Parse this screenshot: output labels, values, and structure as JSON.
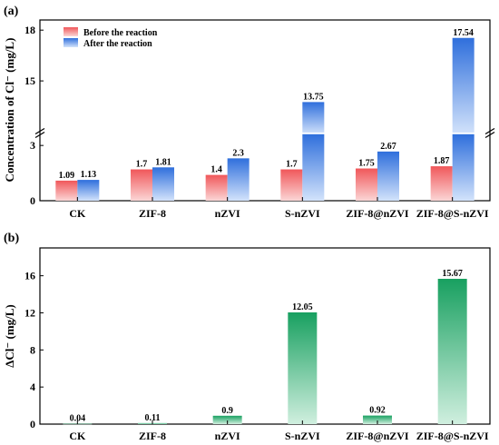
{
  "chart_data": [
    {
      "panel": "(a)",
      "type": "bar",
      "ylabel": "Concentration of Cl⁻ (mg/L)",
      "categories": [
        "CK",
        "ZIF-8",
        "nZVI",
        "S-nZVI",
        "ZIF-8@nZVI",
        "ZIF-8@S-nZVI"
      ],
      "series": [
        {
          "name": "Before the reaction",
          "values": [
            1.09,
            1.7,
            1.4,
            1.7,
            1.75,
            1.87
          ],
          "labels": [
            "1.09",
            "1.7",
            "1.4",
            "1.7",
            "1.75",
            "1.87"
          ],
          "color": "#f0575a"
        },
        {
          "name": "After the reaction",
          "values": [
            1.13,
            1.81,
            2.3,
            13.75,
            2.67,
            17.54
          ],
          "labels": [
            "1.13",
            "1.81",
            "2.3",
            "13.75",
            "2.67",
            "17.54"
          ],
          "color": "#2f6fdc"
        }
      ],
      "yticks": [
        "0",
        "3",
        "15",
        "18"
      ],
      "axis_break": [
        3.6,
        12.0
      ],
      "ylim": [
        0,
        18.6
      ],
      "legend": "top-left",
      "grid": false
    },
    {
      "panel": "(b)",
      "type": "bar",
      "ylabel": "ΔCl⁻ (mg/L)",
      "categories": [
        "CK",
        "ZIF-8",
        "nZVI",
        "S-nZVI",
        "ZIF-8@nZVI",
        "ZIF-8@S-nZVI"
      ],
      "series": [
        {
          "values": [
            0.04,
            0.11,
            0.9,
            12.05,
            0.92,
            15.67
          ],
          "labels": [
            "0.04",
            "0.11",
            "0.9",
            "12.05",
            "0.92",
            "15.67"
          ],
          "color": "#18a060"
        }
      ],
      "yticks": [
        "0",
        "4",
        "8",
        "12",
        "16"
      ],
      "ylim": [
        0,
        19
      ],
      "grid": false
    }
  ]
}
